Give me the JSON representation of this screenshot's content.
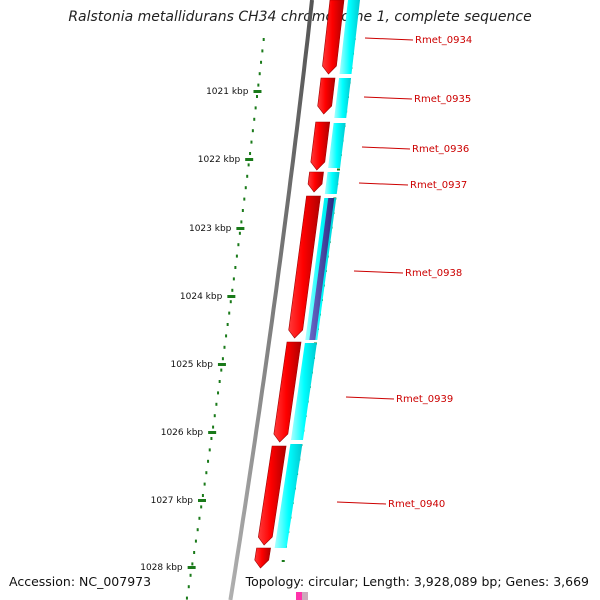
{
  "title": "Ralstonia metallidurans CH34 chromosome 1, complete sequence",
  "accession": "Accession: NC_007973",
  "summary": "Topology: circular; Length: 3,928,089 bp; Genes: 3,669",
  "scale_labels": [
    "1021 kbp",
    "1022 kbp",
    "1023 kbp",
    "1024 kbp",
    "1025 kbp",
    "1026 kbp",
    "1027 kbp",
    "1028 kbp"
  ],
  "genes": [
    {
      "name": "Rmet_0934"
    },
    {
      "name": "Rmet_0935"
    },
    {
      "name": "Rmet_0936"
    },
    {
      "name": "Rmet_0937"
    },
    {
      "name": "Rmet_0938"
    },
    {
      "name": "Rmet_0939"
    },
    {
      "name": "Rmet_0940"
    }
  ],
  "colors": {
    "forward_gene": "#ff0000",
    "cds_track": "#00ffff",
    "highlight_cds": "#3a3a9a",
    "backbone": "#808080",
    "tick": "#1a7a1a",
    "label": "#cc0000"
  }
}
